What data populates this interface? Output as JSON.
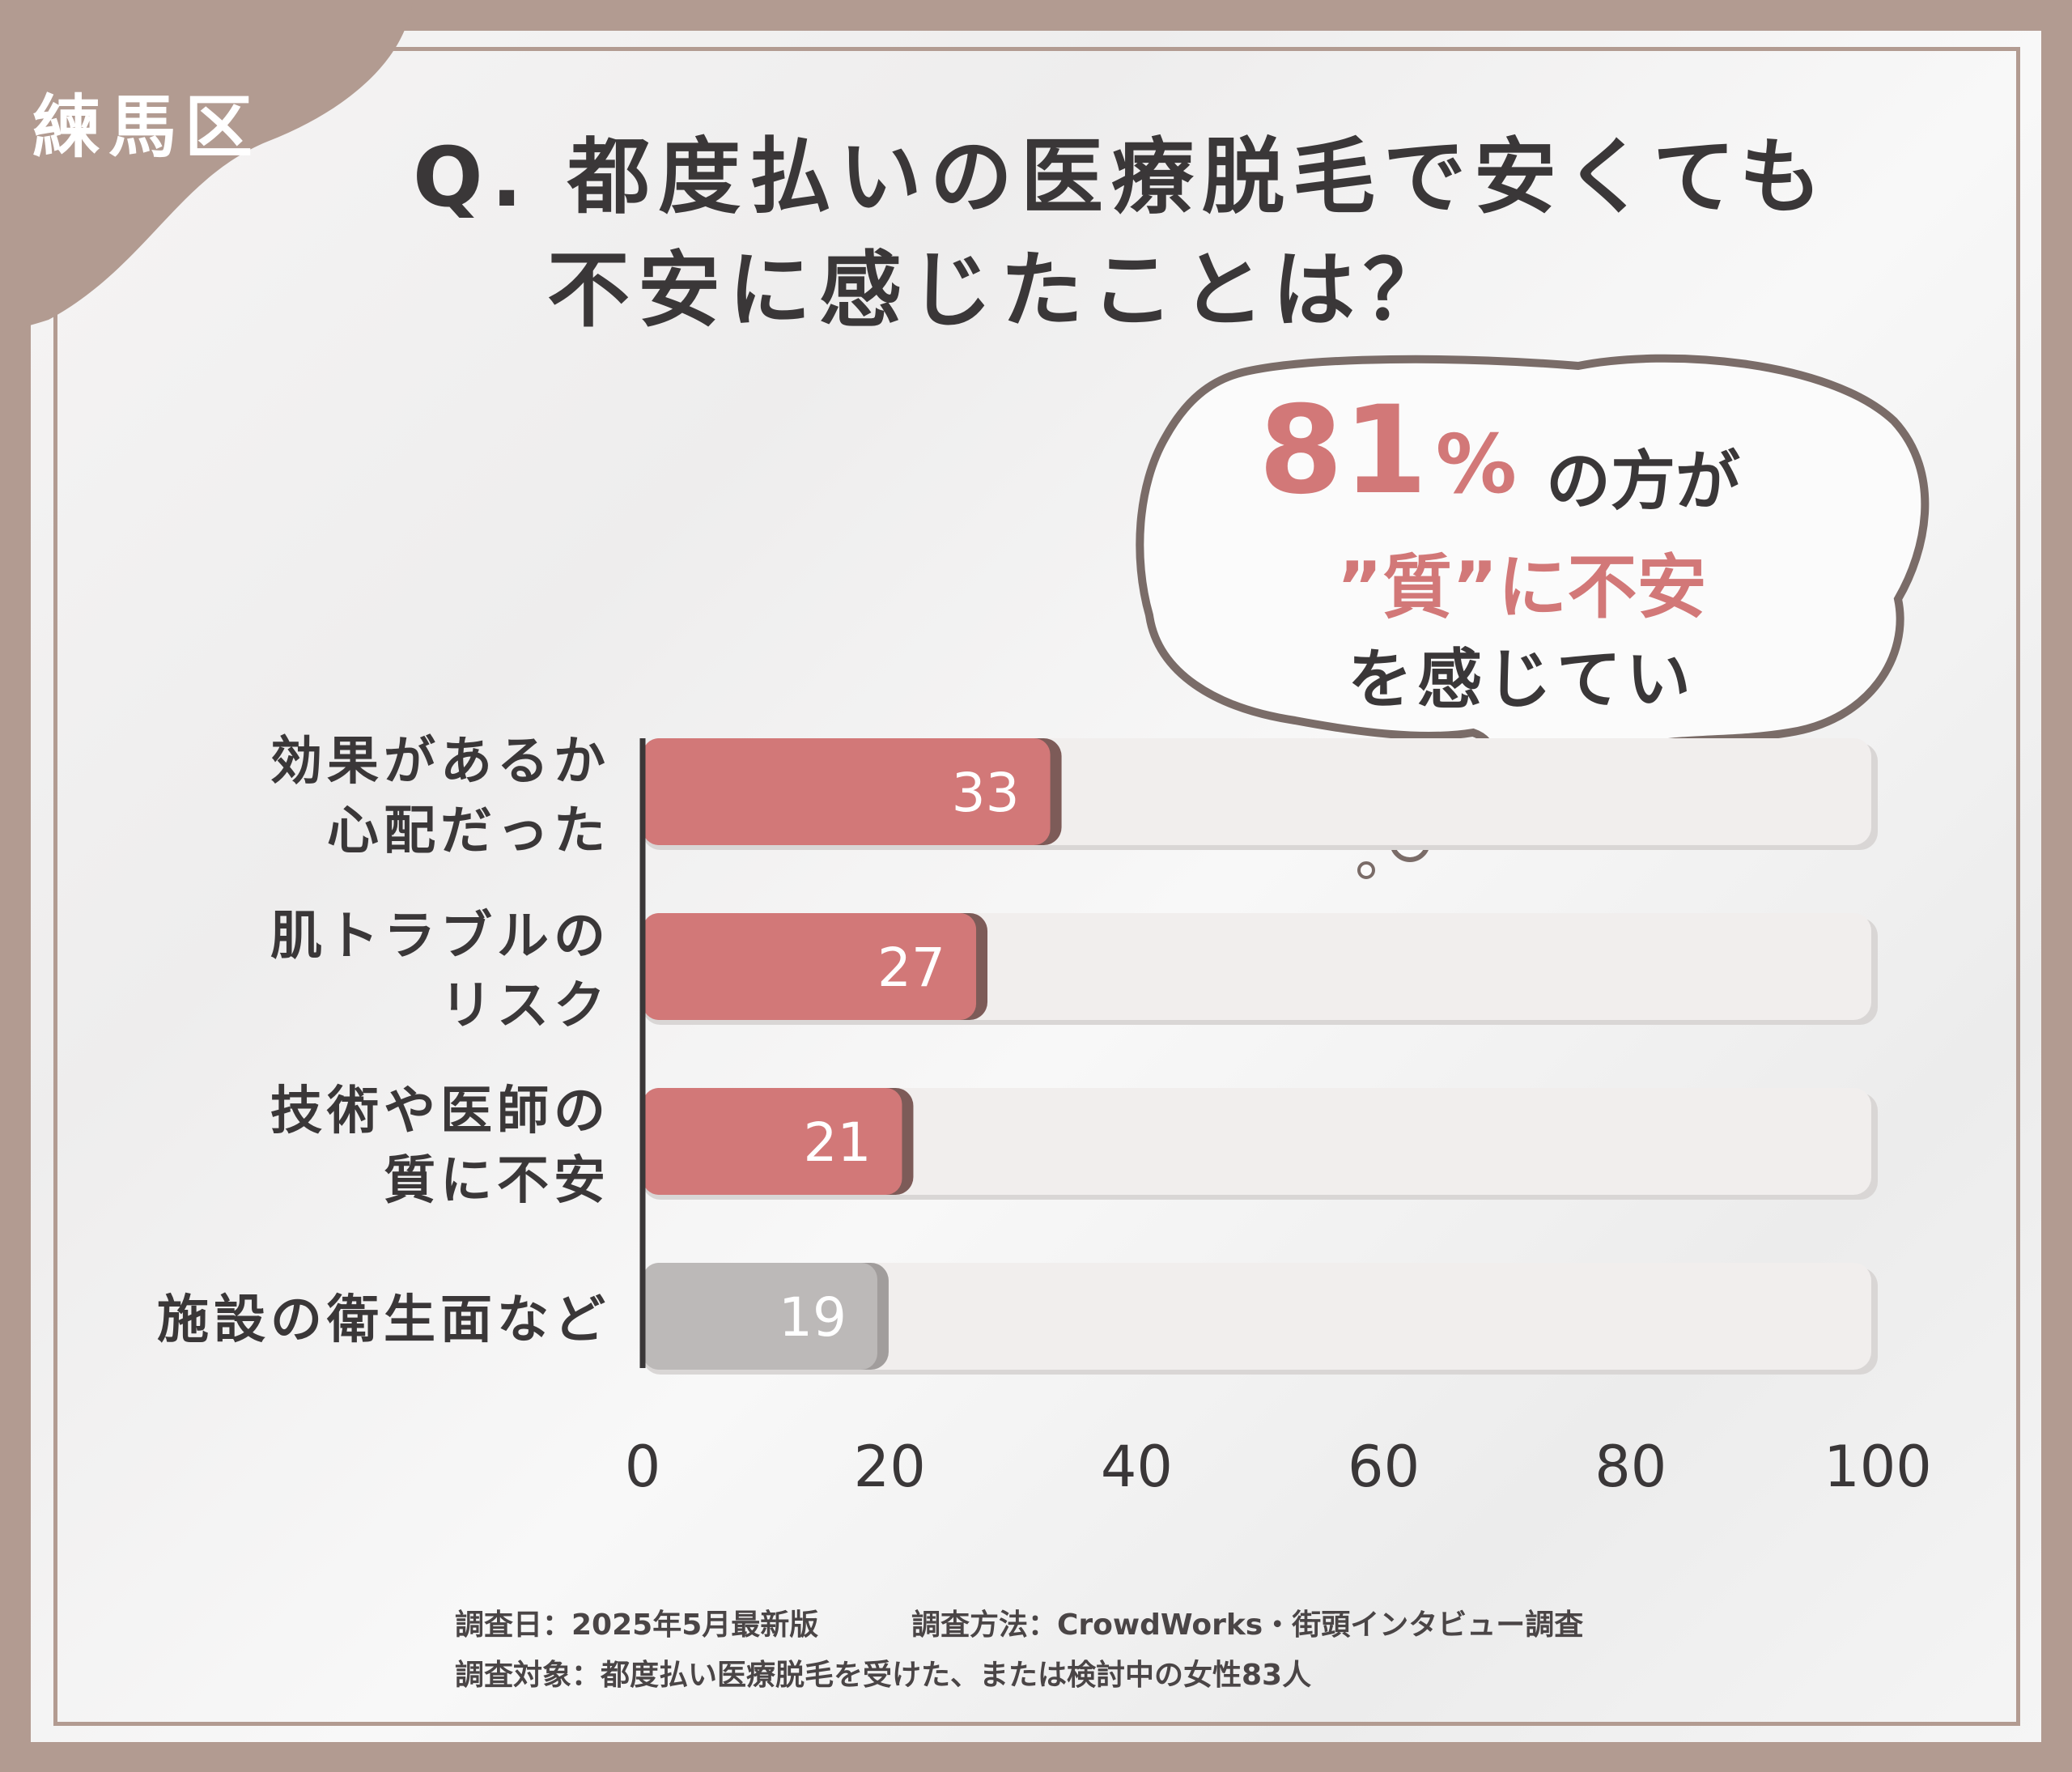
{
  "ward": "練馬区",
  "title": {
    "line1": "Q. 都度払いの医療脱毛で安くても",
    "line2": "不安に感じたことは？"
  },
  "callout": {
    "percent": "81",
    "percent_sign": "%",
    "line1": "の方が",
    "line2": "”質”に不安",
    "line3": "を感じていた！"
  },
  "chart_data": {
    "type": "bar",
    "orientation": "horizontal",
    "categories": [
      "効果があるか\n心配だった",
      "肌トラブルの\nリスク",
      "技術や医師の\n質に不安",
      "施設の衛生面など"
    ],
    "values": [
      33,
      27,
      21,
      19
    ],
    "xlim": [
      0,
      100
    ],
    "xticks": [
      "0",
      "20",
      "40",
      "60",
      "80",
      "100"
    ],
    "colors": [
      "#d27878",
      "#d27878",
      "#d27878",
      "#bcb9b8"
    ],
    "track_color": "#f1eeed",
    "grid": false
  },
  "footer": {
    "date": "調査日：2025年5月最新版",
    "method": "調査方法：CrowdWorks・街頭インタビュー調査",
    "target": "調査対象：都度払い医療脱毛を受けた、または検討中の女性83人"
  }
}
